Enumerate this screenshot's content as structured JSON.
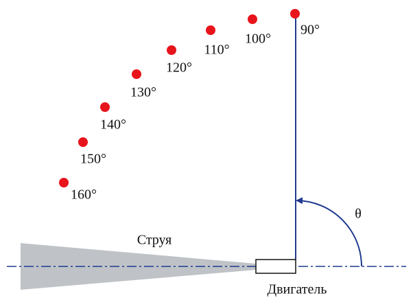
{
  "points": [
    {
      "label": "90°"
    },
    {
      "label": "100°"
    },
    {
      "label": "110°"
    },
    {
      "label": "120°"
    },
    {
      "label": "130°"
    },
    {
      "label": "140°"
    },
    {
      "label": "150°"
    },
    {
      "label": "160°"
    }
  ],
  "jet_label": "Струя",
  "engine_label": "Двигатель",
  "angle_symbol": "θ"
}
